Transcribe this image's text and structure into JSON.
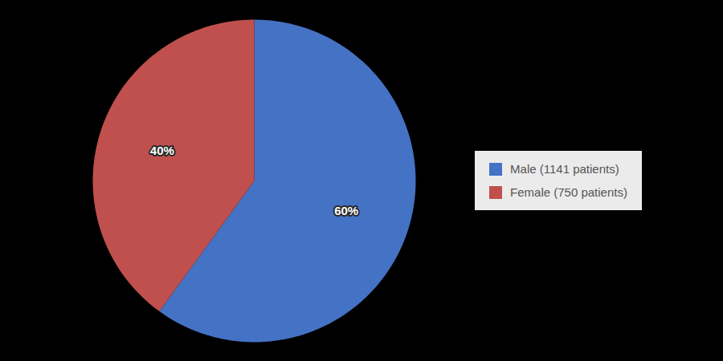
{
  "chart_data": {
    "type": "pie",
    "categories": [
      "Male (1141 patients)",
      "Female (750 patients)"
    ],
    "values": [
      60,
      40
    ],
    "value_labels": [
      "60%",
      "40%"
    ],
    "colors": [
      "#4472C4",
      "#C0504D"
    ],
    "data_labels": true,
    "legend": "right"
  }
}
